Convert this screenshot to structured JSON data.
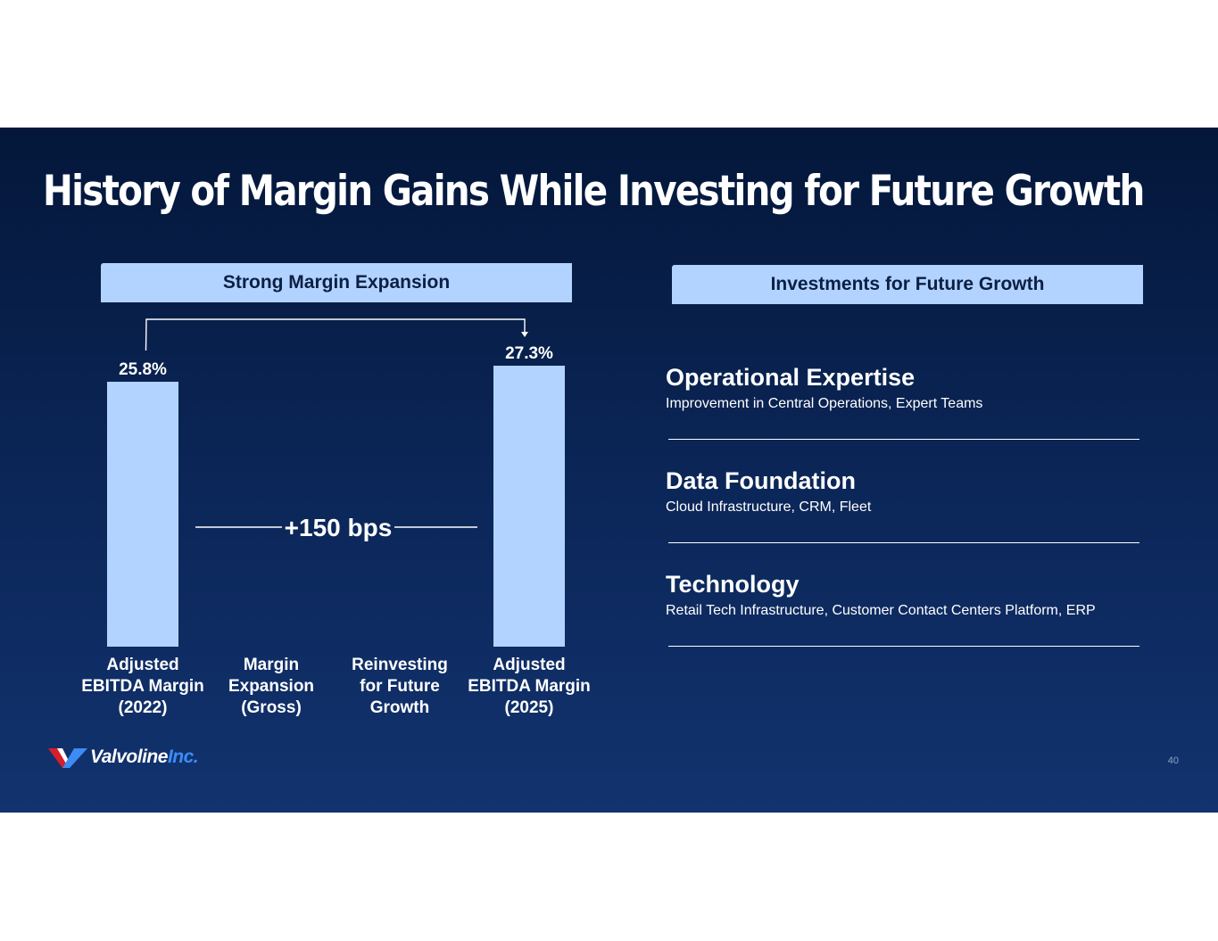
{
  "slide": {
    "title": "History of Margin Gains While Investing for Future Growth",
    "page_number": "40"
  },
  "left_panel": {
    "header": "Strong Margin Expansion"
  },
  "right_panel": {
    "header": "Investments for Future Growth",
    "items": [
      {
        "title": "Operational Expertise",
        "description": "Improvement in Central Operations, Expert Teams"
      },
      {
        "title": "Data Foundation",
        "description": "Cloud Infrastructure, CRM, Fleet"
      },
      {
        "title": "Technology",
        "description": "Retail Tech Infrastructure, Customer Contact Centers Platform, ERP"
      }
    ]
  },
  "logo": {
    "name": "Valvoline",
    "suffix": "Inc."
  },
  "colors": {
    "bar": "#b2d3ff",
    "background_top": "#04173a",
    "background_bottom": "#12336f",
    "accent_red": "#d81e2a",
    "accent_blue": "#3d8cf5"
  },
  "chart_data": {
    "type": "bar",
    "title": "Strong Margin Expansion",
    "categories": [
      [
        "Adjusted",
        "EBITDA Margin",
        "(2022)"
      ],
      [
        "Margin",
        "Expansion",
        "(Gross)"
      ],
      [
        "Reinvesting",
        "for Future",
        "Growth"
      ],
      [
        "Adjusted",
        "EBITDA Margin",
        "(2025)"
      ]
    ],
    "values": [
      25.8,
      null,
      null,
      27.3
    ],
    "value_labels": [
      "25.8%",
      "",
      "",
      "27.3%"
    ],
    "annotation": "+150 bps",
    "ylabel": "",
    "xlabel": ""
  }
}
